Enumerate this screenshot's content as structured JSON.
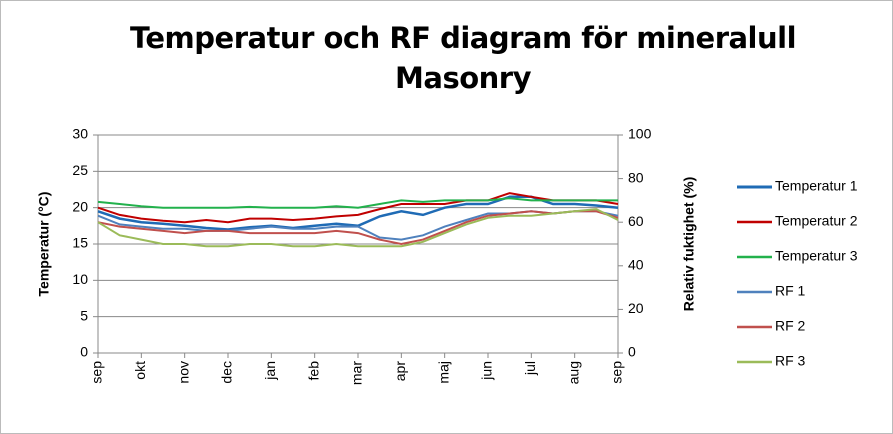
{
  "chart_data": {
    "type": "line",
    "title": "Temperatur och RF diagram för mineralull Masonry",
    "y_label": "Temperatur (°C)",
    "y2_label": "Relativ fuktighet (%)",
    "categories": [
      "sep",
      null,
      "okt",
      null,
      "nov",
      null,
      "dec",
      null,
      "jan",
      null,
      "feb",
      null,
      "mar",
      null,
      "apr",
      null,
      "maj",
      null,
      "jun",
      null,
      "jul",
      null,
      "aug",
      null,
      "sep"
    ],
    "ylim": [
      0,
      30
    ],
    "yticks": [
      0,
      5,
      10,
      15,
      20,
      25,
      30
    ],
    "y2lim": [
      0,
      100
    ],
    "y2ticks": [
      0,
      20,
      40,
      60,
      80,
      100
    ],
    "grid": true,
    "legend": "right",
    "series": [
      {
        "name": "Temperatur 1",
        "color": "#1f6bb5",
        "values": [
          19.5,
          18.5,
          18,
          17.8,
          17.5,
          17.2,
          17,
          17.3,
          17.5,
          17.2,
          17.5,
          17.8,
          17.5,
          18.8,
          19.5,
          19,
          20,
          20.5,
          20.5,
          21.5,
          21.5,
          20.5,
          20.5,
          20.3,
          20
        ]
      },
      {
        "name": "Temperatur 2",
        "color": "#c00000",
        "values": [
          20,
          19,
          18.5,
          18.2,
          18,
          18.3,
          18,
          18.5,
          18.5,
          18.3,
          18.5,
          18.8,
          19,
          19.8,
          20.5,
          20.5,
          20.5,
          21,
          21,
          22,
          21.5,
          21,
          21,
          21,
          20.5
        ]
      },
      {
        "name": "Temperatur 3",
        "color": "#22b14c",
        "values": [
          20.8,
          20.5,
          20.2,
          20,
          20,
          20,
          20,
          20.1,
          20,
          20,
          20,
          20.2,
          20,
          20.5,
          21,
          20.8,
          21,
          21,
          21,
          21.3,
          21,
          21,
          21,
          21,
          21
        ]
      },
      {
        "name": "RF 1",
        "color": "#4f81bd",
        "axis": "y2",
        "values": [
          63,
          59,
          58,
          57,
          57,
          56,
          56,
          57,
          58,
          57,
          57,
          58,
          58,
          53,
          52,
          54,
          58,
          61,
          64,
          64,
          65,
          64,
          65,
          65,
          63
        ]
      },
      {
        "name": "RF 2",
        "color": "#c0504d",
        "axis": "y2",
        "values": [
          60,
          58,
          57,
          56,
          55,
          56,
          56,
          55,
          55,
          55,
          55,
          56,
          55,
          52,
          50,
          52,
          56,
          60,
          63,
          64,
          65,
          64,
          65,
          65,
          62
        ]
      },
      {
        "name": "RF 3",
        "color": "#9bbb59",
        "axis": "y2",
        "values": [
          60,
          54,
          52,
          50,
          50,
          49,
          49,
          50,
          50,
          49,
          49,
          50,
          49,
          49,
          49,
          51,
          55,
          59,
          62,
          63,
          63,
          64,
          65,
          66,
          61
        ]
      }
    ]
  }
}
